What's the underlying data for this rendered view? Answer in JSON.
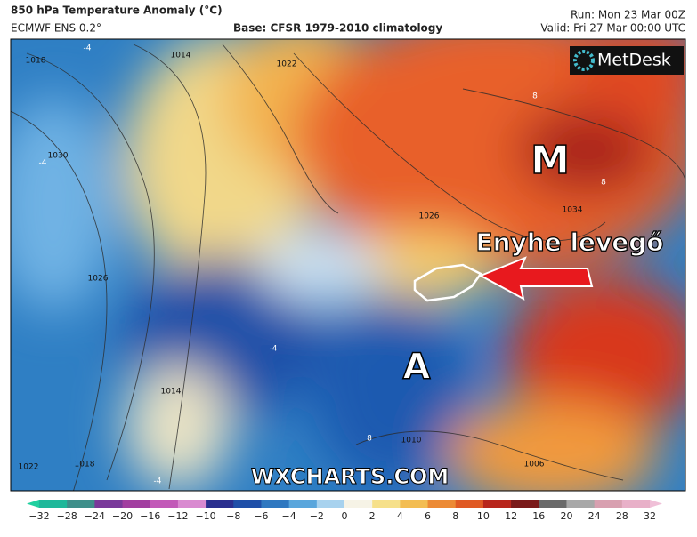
{
  "header": {
    "title": "850 hPa Temperature Anomaly (°C)",
    "model": "ECMWF ENS 0.2°",
    "base": "Base: CFSR 1979-2010 climatology",
    "run": "Run: Mon 23 Mar 00Z",
    "valid": "Valid: Fri 27 Mar 00:00 UTC"
  },
  "logo": "MetDesk",
  "map": {
    "annotations": {
      "high": "M",
      "low": "A",
      "arrow_label": "Enyhe levegő"
    },
    "watermark": "WXCHARTS.COM",
    "isobar_labels": [
      "1018",
      "1014",
      "1022",
      "1030",
      "1026",
      "1026",
      "1034",
      "1018",
      "1022",
      "1014",
      "1006",
      "1010"
    ],
    "anomaly_labels": [
      "-4",
      "-4",
      "8",
      "8",
      "-4",
      "8",
      "-4"
    ]
  },
  "colorbar": {
    "labels": [
      "−32",
      "−28",
      "−24",
      "−20",
      "−16",
      "−12",
      "−10",
      "−8",
      "−6",
      "−4",
      "−2",
      "0",
      "2",
      "4",
      "6",
      "8",
      "10",
      "12",
      "16",
      "20",
      "24",
      "28",
      "32"
    ]
  }
}
